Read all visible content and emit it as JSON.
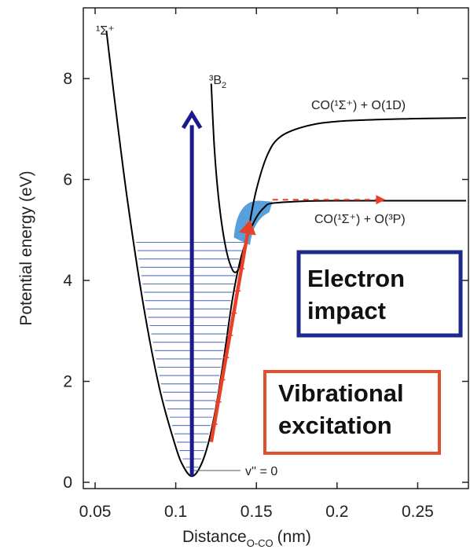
{
  "chart_data": {
    "type": "line",
    "xlabel": "Distance",
    "xlabel_sub": "O-CO",
    "xlabel_unit": "(nm)",
    "ylabel": "Potential energy (eV)",
    "xlim": [
      0.05,
      0.28
    ],
    "ylim": [
      -0.2,
      9.3
    ],
    "x_ticks": [
      0.05,
      0.1,
      0.15,
      0.2,
      0.25
    ],
    "x_tick_labels": [
      "0.05",
      "0.1",
      "0.15",
      "0.2",
      "0.25"
    ],
    "y_ticks": [
      0,
      2,
      4,
      6,
      8
    ],
    "y_tick_labels": [
      "0",
      "2",
      "4",
      "6",
      "8"
    ],
    "series": [
      {
        "name": "¹Σ⁺",
        "color": "#000000",
        "points": [
          [
            0.057,
            8.95
          ],
          [
            0.062,
            7.6
          ],
          [
            0.07,
            5.6
          ],
          [
            0.08,
            3.5
          ],
          [
            0.09,
            1.85
          ],
          [
            0.1,
            0.7
          ],
          [
            0.105,
            0.3
          ],
          [
            0.11,
            0.12
          ],
          [
            0.115,
            0.3
          ],
          [
            0.12,
            0.75
          ],
          [
            0.125,
            1.5
          ],
          [
            0.13,
            2.5
          ],
          [
            0.135,
            3.6
          ],
          [
            0.14,
            4.4
          ],
          [
            0.145,
            4.9
          ],
          [
            0.15,
            5.25
          ],
          [
            0.155,
            5.45
          ],
          [
            0.16,
            5.53
          ],
          [
            0.18,
            5.57
          ],
          [
            0.2,
            5.58
          ],
          [
            0.28,
            5.58
          ]
        ]
      },
      {
        "name": "³B₂",
        "color": "#000000",
        "points": [
          [
            0.122,
            7.9
          ],
          [
            0.124,
            6.6
          ],
          [
            0.127,
            5.5
          ],
          [
            0.131,
            4.65
          ],
          [
            0.135,
            4.22
          ],
          [
            0.138,
            4.18
          ],
          [
            0.141,
            4.4
          ],
          [
            0.145,
            5.0
          ],
          [
            0.15,
            5.8
          ],
          [
            0.157,
            6.5
          ],
          [
            0.165,
            6.85
          ],
          [
            0.18,
            7.05
          ],
          [
            0.2,
            7.15
          ],
          [
            0.24,
            7.2
          ],
          [
            0.28,
            7.22
          ]
        ]
      }
    ],
    "arrows": [
      {
        "name": "electron-impact-arrow",
        "color": "#1a1a8c",
        "from": [
          0.11,
          0.12
        ],
        "to": [
          0.11,
          7.3
        ]
      },
      {
        "name": "vibrational-arrow",
        "color": "#e8412a",
        "from": [
          0.122,
          0.8
        ],
        "to": [
          0.146,
          5.2
        ]
      },
      {
        "name": "dissociation-arrow",
        "color": "#e8412a",
        "dashed": true,
        "from": [
          0.16,
          5.6
        ],
        "to": [
          0.23,
          5.6
        ]
      }
    ],
    "annotations": {
      "state_singlet": "¹Σ⁺",
      "state_triplet": "³B",
      "state_triplet_sub": "2",
      "asymptote_upper": "CO(¹Σ⁺) + O(1D)",
      "asymptote_lower": "CO(¹Σ⁺) + O(³P)",
      "ground_level": "v'' = 0"
    },
    "boxes": {
      "electron_impact": {
        "lines": [
          "Electron",
          "impact"
        ],
        "border_color": "#1e2b8a"
      },
      "vibrational_excitation": {
        "lines": [
          "Vibrational",
          "excitation"
        ],
        "border_color": "#e0502e"
      }
    },
    "colors": {
      "vibrational_levels": "#3b5bb5",
      "blue_blob": "#3a8fd6"
    }
  }
}
